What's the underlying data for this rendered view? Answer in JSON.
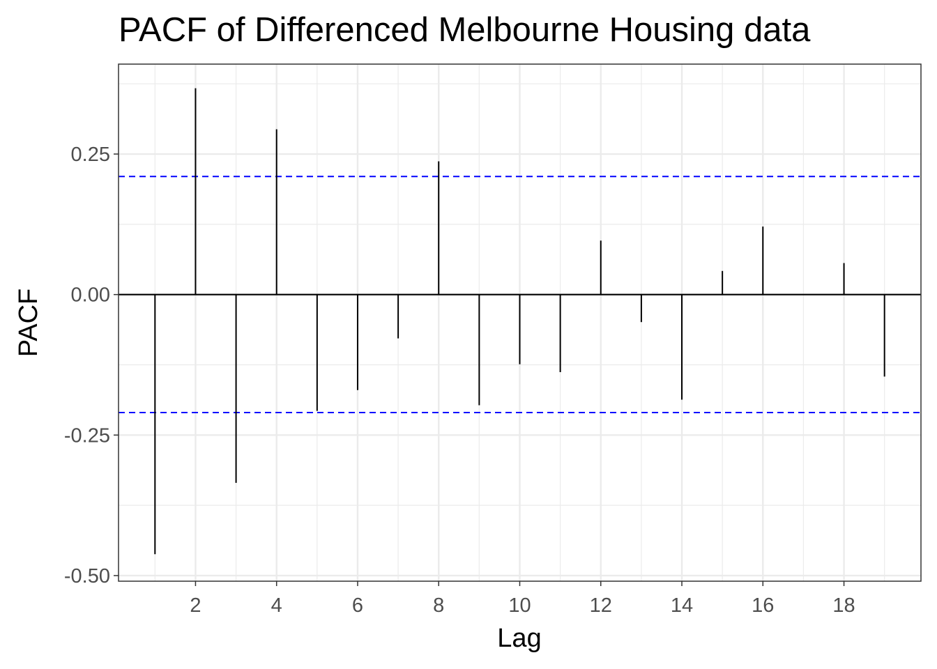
{
  "chart_data": {
    "type": "bar",
    "title": "PACF of Differenced Melbourne Housing data",
    "xlabel": "Lag",
    "ylabel": "PACF",
    "x": [
      1,
      2,
      3,
      4,
      5,
      6,
      7,
      8,
      9,
      10,
      11,
      12,
      13,
      14,
      15,
      16,
      17,
      18,
      19
    ],
    "values": [
      -0.462,
      0.367,
      -0.335,
      0.294,
      -0.207,
      -0.17,
      -0.078,
      0.237,
      -0.197,
      -0.124,
      -0.138,
      0.096,
      -0.049,
      -0.187,
      0.042,
      0.121,
      0.0,
      0.056,
      -0.146
    ],
    "xlim": [
      0.1,
      19.9
    ],
    "ylim": [
      -0.51,
      0.41
    ],
    "x_ticks": [
      2,
      4,
      6,
      8,
      10,
      12,
      14,
      16,
      18
    ],
    "x_tick_labels": [
      "2",
      "4",
      "6",
      "8",
      "10",
      "12",
      "14",
      "16",
      "18"
    ],
    "y_ticks": [
      0.25,
      0.0,
      -0.25,
      -0.5
    ],
    "y_tick_labels": [
      "0.25",
      "0.00",
      "-0.25",
      "-0.50"
    ],
    "confidence_bound": 0.21,
    "zero_line": 0,
    "grid": true,
    "legend": "none",
    "colors": {
      "bars": "#000000",
      "confidence": "#0000ff",
      "grid": "#ebebeb",
      "panel_border": "#333333",
      "tick_text": "#4d4d4d"
    }
  }
}
